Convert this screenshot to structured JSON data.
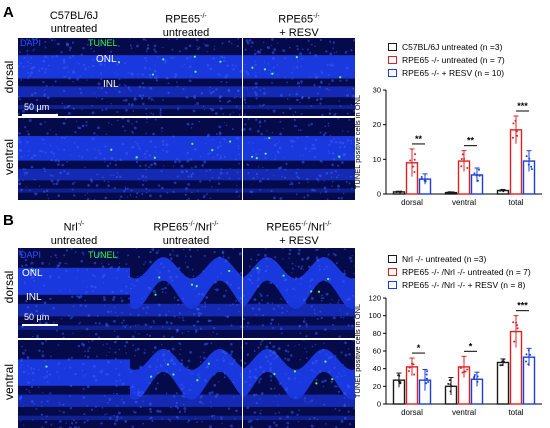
{
  "panels": [
    {
      "letter": "A",
      "columns": [
        {
          "line1": "C57BL/6J",
          "line2": "untreated"
        },
        {
          "line1": "RPE65",
          "sup1": "-/-",
          "line2": "untreated"
        },
        {
          "line1": "RPE65",
          "sup1": "-/-",
          "line2": "+ RESV"
        }
      ],
      "rows": [
        "dorsal",
        "ventral"
      ],
      "image_labels": {
        "dapi": "DAPI",
        "tunel": "TUNEL",
        "onl": "ONL",
        "inl": "INL",
        "scale": "50 µm"
      },
      "legend": [
        {
          "label": "C57BL/6J untreated (n =3)",
          "color": "#1a1a1a"
        },
        {
          "label": "RPE65 -/- untreated (n = 7)",
          "color": "#e02020"
        },
        {
          "label": "RPE65 -/- + RESV (n = 10)",
          "color": "#1a3fd6"
        }
      ],
      "chart_data": {
        "type": "bar",
        "categories": [
          "dorsal",
          "ventral",
          "total"
        ],
        "ylabel": "TUNEL positive cells in ONL",
        "ylim": [
          0,
          30
        ],
        "yticks": [
          0,
          10,
          20,
          30
        ],
        "series": [
          {
            "name": "C57BL/6J untreated (n =3)",
            "color": "#1a1a1a",
            "values": [
              0.6,
              0.4,
              1.0
            ],
            "errors": [
              0.2,
              0.2,
              0.3
            ]
          },
          {
            "name": "RPE65 -/- untreated (n = 7)",
            "color": "#e02020",
            "values": [
              9.0,
              9.5,
              18.5
            ],
            "errors": [
              4.0,
              3.0,
              4.0
            ]
          },
          {
            "name": "RPE65 -/- + RESV (n = 10)",
            "color": "#1a3fd6",
            "values": [
              4.3,
              5.5,
              9.5
            ],
            "errors": [
              1.5,
              2.0,
              3.0
            ]
          }
        ],
        "significance": [
          "**",
          "**",
          "***"
        ]
      }
    },
    {
      "letter": "B",
      "columns": [
        {
          "line1": "Nrl",
          "sup1": "-/-",
          "line2": "untreated"
        },
        {
          "line1": "RPE65",
          "sup1": "-/-",
          "mid": "/Nrl",
          "sup2": "-/-",
          "line2": "untreated"
        },
        {
          "line1": "RPE65",
          "sup1": "-/-",
          "mid": "/Nrl",
          "sup2": "-/-",
          "line2": "+ RESV"
        }
      ],
      "rows": [
        "dorsal",
        "ventral"
      ],
      "image_labels": {
        "dapi": "DAPI",
        "tunel": "TUNEL",
        "onl": "ONL",
        "inl": "INL",
        "scale": "50 µm"
      },
      "legend": [
        {
          "label": "Nrl -/- untreated (n =3)",
          "color": "#1a1a1a"
        },
        {
          "label": "RPE65 -/- /Nrl -/- untreated (n = 7)",
          "color": "#e02020"
        },
        {
          "label": "RPE65 -/- /Nrl -/- + RESV (n = 8)",
          "color": "#1a3fd6"
        }
      ],
      "chart_data": {
        "type": "bar",
        "categories": [
          "dorsal",
          "ventral",
          "total"
        ],
        "ylabel": "TUNEL positive cells in ONL",
        "ylim": [
          0,
          120
        ],
        "yticks": [
          0,
          20,
          40,
          60,
          80,
          100,
          120
        ],
        "series": [
          {
            "name": "Nrl -/- untreated (n =3)",
            "color": "#1a1a1a",
            "values": [
              27,
              20,
              47
            ],
            "errors": [
              8,
              10,
              4
            ]
          },
          {
            "name": "RPE65 -/- /Nrl -/- untreated (n = 7)",
            "color": "#e02020",
            "values": [
              42,
              42,
              82
            ],
            "errors": [
              10,
              12,
              18
            ]
          },
          {
            "name": "RPE65 -/- /Nrl -/- + RESV (n = 8)",
            "color": "#1a3fd6",
            "values": [
              27,
              28,
              53
            ],
            "errors": [
              12,
              8,
              10
            ]
          }
        ],
        "significance": [
          "*",
          "*",
          "***"
        ]
      }
    }
  ]
}
